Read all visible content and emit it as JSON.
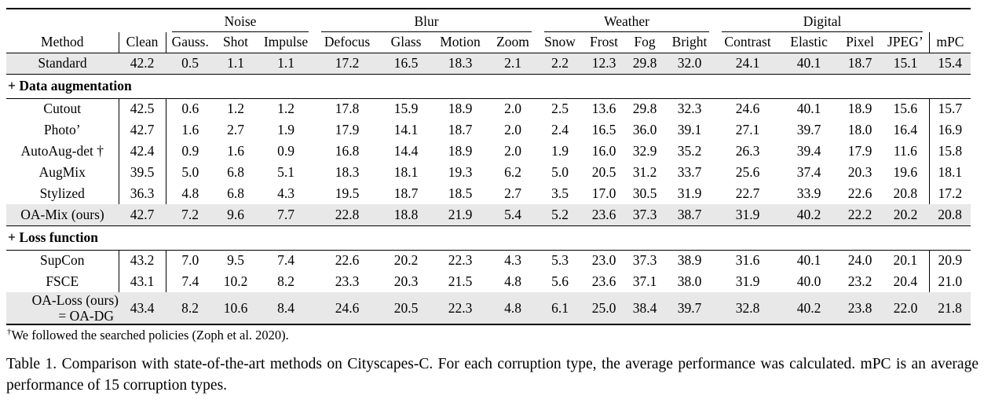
{
  "colors": {
    "row_highlight": "#e8e8e8",
    "text": "#000000",
    "background": "#ffffff",
    "rule": "#000000"
  },
  "table": {
    "group_headers": [
      {
        "label": "",
        "span": 2,
        "rule": false
      },
      {
        "label": "Noise",
        "span": 3,
        "rule": true
      },
      {
        "label": "Blur",
        "span": 4,
        "rule": true
      },
      {
        "label": "Weather",
        "span": 4,
        "rule": true
      },
      {
        "label": "Digital",
        "span": 4,
        "rule": true
      },
      {
        "label": "",
        "span": 1,
        "rule": false
      }
    ],
    "columns": [
      "Method",
      "Clean",
      "Gauss.",
      "Shot",
      "Impulse",
      "Defocus",
      "Glass",
      "Motion",
      "Zoom",
      "Snow",
      "Frost",
      "Fog",
      "Bright",
      "Contrast",
      "Elastic",
      "Pixel",
      "JPEG’",
      "mPC"
    ],
    "sections": [
      {
        "header": null,
        "rows": [
          {
            "method": "Standard",
            "highlight": true,
            "rule_after": "mid",
            "values": [
              "42.2",
              "0.5",
              "1.1",
              "1.1",
              "17.2",
              "16.5",
              "18.3",
              "2.1",
              "2.2",
              "12.3",
              "29.8",
              "32.0",
              "24.1",
              "40.1",
              "18.7",
              "15.1",
              "15.4"
            ],
            "bold": []
          }
        ]
      },
      {
        "header": "+ Data augmentation",
        "rows": [
          {
            "method": "Cutout",
            "highlight": false,
            "rule_after": null,
            "values": [
              "42.5",
              "0.6",
              "1.2",
              "1.2",
              "17.8",
              "15.9",
              "18.9",
              "2.0",
              "2.5",
              "13.6",
              "29.8",
              "32.3",
              "24.6",
              "40.1",
              "18.9",
              "15.6",
              "15.7"
            ],
            "bold": []
          },
          {
            "method": "Photo’",
            "highlight": false,
            "rule_after": null,
            "values": [
              "42.7",
              "1.6",
              "2.7",
              "1.9",
              "17.9",
              "14.1",
              "18.7",
              "2.0",
              "2.4",
              "16.5",
              "36.0",
              "39.1",
              "27.1",
              "39.7",
              "18.0",
              "16.4",
              "16.9"
            ],
            "bold": [
              0,
              11
            ]
          },
          {
            "method": "AutoAug-det †",
            "highlight": false,
            "rule_after": null,
            "values": [
              "42.4",
              "0.9",
              "1.6",
              "0.9",
              "16.8",
              "14.4",
              "18.9",
              "2.0",
              "1.9",
              "16.0",
              "32.9",
              "35.2",
              "26.3",
              "39.4",
              "17.9",
              "11.6",
              "15.8"
            ],
            "bold": []
          },
          {
            "method": "AugMix",
            "highlight": false,
            "rule_after": null,
            "values": [
              "39.5",
              "5.0",
              "6.8",
              "5.1",
              "18.3",
              "18.1",
              "19.3",
              "6.2",
              "5.0",
              "20.5",
              "31.2",
              "33.7",
              "25.6",
              "37.4",
              "20.3",
              "19.6",
              "18.1"
            ],
            "bold": [
              7
            ]
          },
          {
            "method": "Stylized",
            "highlight": false,
            "rule_after": null,
            "values": [
              "36.3",
              "4.8",
              "6.8",
              "4.3",
              "19.5",
              "18.7",
              "18.5",
              "2.7",
              "3.5",
              "17.0",
              "30.5",
              "31.9",
              "22.7",
              "33.9",
              "22.6",
              "20.8",
              "17.2"
            ],
            "bold": [
              14,
              15
            ]
          },
          {
            "method": "OA-Mix (ours)",
            "highlight": true,
            "rule_after": "mid",
            "values": [
              "42.7",
              "7.2",
              "9.6",
              "7.7",
              "22.8",
              "18.8",
              "21.9",
              "5.4",
              "5.2",
              "23.6",
              "37.3",
              "38.7",
              "31.9",
              "40.2",
              "22.2",
              "20.2",
              "20.8"
            ],
            "bold": [
              0,
              1,
              2,
              3,
              4,
              5,
              6,
              8,
              9,
              10,
              12,
              13,
              16
            ]
          }
        ]
      },
      {
        "header": "+ Loss function",
        "rows": [
          {
            "method": "SupCon",
            "highlight": false,
            "rule_after": null,
            "values": [
              "43.2",
              "7.0",
              "9.5",
              "7.4",
              "22.6",
              "20.2",
              "22.3",
              "4.3",
              "5.3",
              "23.0",
              "37.3",
              "38.9",
              "31.6",
              "40.1",
              "24.0",
              "20.1",
              "20.9"
            ],
            "bold": [
              14
            ]
          },
          {
            "method": "FSCE",
            "highlight": false,
            "rule_after": null,
            "values": [
              "43.1",
              "7.4",
              "10.2",
              "8.2",
              "23.3",
              "20.3",
              "21.5",
              "4.8",
              "5.6",
              "23.6",
              "37.1",
              "38.0",
              "31.9",
              "40.0",
              "23.2",
              "20.4",
              "21.0"
            ],
            "bold": []
          },
          {
            "method": "OA-Loss (ours)",
            "method_line2": "= OA-DG",
            "highlight": true,
            "rule_after": "bottom",
            "values": [
              "43.4",
              "8.2",
              "10.6",
              "8.4",
              "24.6",
              "20.5",
              "22.3",
              "4.8",
              "6.1",
              "25.0",
              "38.4",
              "39.7",
              "32.8",
              "40.2",
              "23.8",
              "22.0",
              "21.8"
            ],
            "bold": [
              0,
              1,
              2,
              3,
              4,
              5,
              6,
              8,
              9,
              10,
              11,
              12,
              13,
              15,
              16
            ]
          }
        ]
      }
    ]
  },
  "footnote": {
    "marker": "†",
    "text": "We followed the searched policies (Zoph et al. 2020)."
  },
  "caption": "Table 1. Comparison with state-of-the-art methods on Cityscapes-C. For each corruption type, the average performance was calculated. mPC is an average performance of 15 corruption types."
}
